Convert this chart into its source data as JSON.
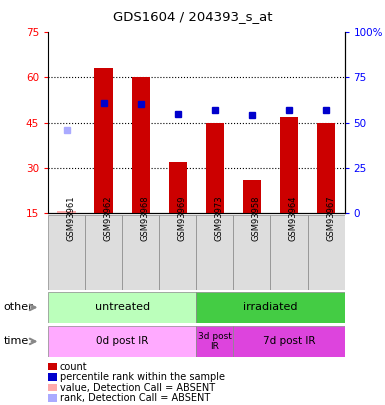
{
  "title": "GDS1604 / 204393_s_at",
  "samples": [
    "GSM93961",
    "GSM93962",
    "GSM93968",
    "GSM93969",
    "GSM93973",
    "GSM93958",
    "GSM93964",
    "GSM93967"
  ],
  "bar_values": [
    15.5,
    63,
    60,
    32,
    45,
    26,
    47,
    45
  ],
  "bar_absent": [
    true,
    false,
    false,
    false,
    false,
    false,
    false,
    false
  ],
  "rank_values": [
    46,
    61,
    60,
    55,
    57,
    54,
    57,
    57
  ],
  "rank_absent": [
    true,
    false,
    false,
    false,
    false,
    false,
    false,
    false
  ],
  "ylim_left": [
    15,
    75
  ],
  "ylim_right": [
    0,
    100
  ],
  "yticks_left": [
    15,
    30,
    45,
    60,
    75
  ],
  "yticks_right": [
    0,
    25,
    50,
    75,
    100
  ],
  "ytick_labels_right": [
    "0",
    "25",
    "50",
    "75",
    "100%"
  ],
  "bar_color": "#cc0000",
  "bar_absent_color": "#ffaaaa",
  "rank_color": "#0000cc",
  "rank_absent_color": "#aaaaff",
  "other_groups": [
    {
      "label": "untreated",
      "start": 0,
      "end": 4,
      "color": "#bbffbb"
    },
    {
      "label": "irradiated",
      "start": 4,
      "end": 8,
      "color": "#44cc44"
    }
  ],
  "time_groups": [
    {
      "label": "0d post IR",
      "start": 0,
      "end": 4,
      "color": "#ffaaff"
    },
    {
      "label": "3d post\nIR",
      "start": 4,
      "end": 5,
      "color": "#dd44dd"
    },
    {
      "label": "7d post IR",
      "start": 5,
      "end": 8,
      "color": "#dd44dd"
    }
  ],
  "legend_items": [
    {
      "label": "count",
      "color": "#cc0000"
    },
    {
      "label": "percentile rank within the sample",
      "color": "#0000cc"
    },
    {
      "label": "value, Detection Call = ABSENT",
      "color": "#ffaaaa"
    },
    {
      "label": "rank, Detection Call = ABSENT",
      "color": "#aaaaff"
    }
  ]
}
